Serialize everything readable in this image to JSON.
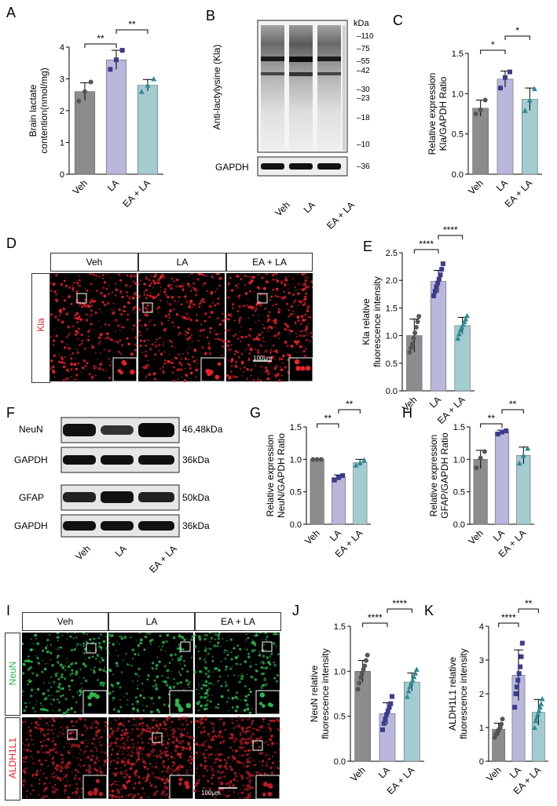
{
  "panel_letters": {
    "A": "A",
    "B": "B",
    "C": "C",
    "D": "D",
    "E": "E",
    "F": "F",
    "G": "G",
    "H": "H",
    "I": "I",
    "J": "J",
    "K": "K"
  },
  "groups": [
    "Veh",
    "LA",
    "EA + LA"
  ],
  "colors": {
    "veh": "#8c8c8c",
    "la": "#b9b7dc",
    "ea": "#a3ccd0",
    "la_dot": "#3b3c8c",
    "ea_dot": "#2f8a95",
    "veh_dot": "#555555",
    "red": "#e8212b",
    "green": "#2db54b"
  },
  "blot_b": {
    "kda": "kDa",
    "markers": [
      "110",
      "75",
      "55",
      "42",
      "30",
      "23",
      "18",
      "10"
    ],
    "gapdh_marker": "36",
    "ylabel": "Anti-lactylysine (Kla)",
    "gapdh": "GAPDH"
  },
  "blot_f": {
    "rows": [
      {
        "name": "NeuN",
        "kda": "46,48kDa"
      },
      {
        "name": "GAPDH",
        "kda": "36kDa"
      },
      {
        "name": "GFAP",
        "kda": "50kDa"
      },
      {
        "name": "GAPDH",
        "kda": "36kDa"
      }
    ]
  },
  "micro_d": {
    "stain": "Kla",
    "scale": "100μm"
  },
  "micro_i": {
    "stains": [
      "NeuN",
      "ALDH1L1"
    ],
    "scale": "100μm"
  },
  "chart_data": [
    {
      "panel": "A",
      "type": "bar",
      "categories": [
        "Veh",
        "LA",
        "EA + LA"
      ],
      "values": [
        2.6,
        3.6,
        2.8
      ],
      "errors": [
        0.28,
        0.3,
        0.18
      ],
      "points": [
        [
          2.3,
          2.6,
          2.9
        ],
        [
          3.3,
          3.6,
          3.9
        ],
        [
          2.6,
          2.8,
          3.0
        ]
      ],
      "ylabel": "Brain lactate contention(nmol/mg)",
      "ylim": [
        0,
        4
      ],
      "yticks": [
        0,
        1,
        2,
        3,
        4
      ],
      "sig": [
        {
          "from": 0,
          "to": 1,
          "label": "**"
        },
        {
          "from": 1,
          "to": 2,
          "label": "**"
        }
      ]
    },
    {
      "panel": "C",
      "type": "bar",
      "categories": [
        "Veh",
        "LA",
        "EA + LA"
      ],
      "values": [
        0.82,
        1.18,
        0.93
      ],
      "errors": [
        0.1,
        0.1,
        0.14
      ],
      "points": [
        [
          0.75,
          0.8,
          0.92
        ],
        [
          1.07,
          1.2,
          1.27
        ],
        [
          0.79,
          0.92,
          1.06
        ]
      ],
      "ylabel": "Relative expression Kla/GAPDH Ratio",
      "ylim": [
        0,
        1.5
      ],
      "yticks": [
        0.0,
        0.5,
        1.0,
        1.5
      ],
      "sig": [
        {
          "from": 0,
          "to": 1,
          "label": "*"
        },
        {
          "from": 1,
          "to": 2,
          "label": "*"
        }
      ]
    },
    {
      "panel": "E",
      "type": "bar",
      "categories": [
        "Veh",
        "LA",
        "EA + LA"
      ],
      "values": [
        1.0,
        1.98,
        1.18
      ],
      "errors": [
        0.3,
        0.2,
        0.15
      ],
      "points": [
        [
          0.7,
          0.78,
          0.85,
          0.95,
          1.05,
          1.15,
          1.25,
          1.35
        ],
        [
          1.72,
          1.8,
          1.88,
          1.95,
          2.02,
          2.1,
          2.2,
          2.3
        ],
        [
          0.95,
          1.03,
          1.1,
          1.15,
          1.2,
          1.25,
          1.3,
          1.36
        ]
      ],
      "ylabel": "Kla relative fluorescence intensity",
      "ylim": [
        0,
        2.5
      ],
      "yticks": [
        0.0,
        0.5,
        1.0,
        1.5,
        2.0,
        2.5
      ],
      "sig": [
        {
          "from": 0,
          "to": 1,
          "label": "****"
        },
        {
          "from": 1,
          "to": 2,
          "label": "****"
        }
      ]
    },
    {
      "panel": "G",
      "type": "bar",
      "categories": [
        "Veh",
        "LA",
        "EA + LA"
      ],
      "values": [
        1.0,
        0.72,
        0.95
      ],
      "errors": [
        0.01,
        0.04,
        0.05
      ],
      "points": [
        [
          1.0,
          1.0,
          1.0
        ],
        [
          0.68,
          0.72,
          0.75
        ],
        [
          0.91,
          0.95,
          0.99
        ]
      ],
      "ylabel": "Relative expression NeuN/GAPDH Ratio",
      "ylim": [
        0,
        1.5
      ],
      "yticks": [
        0.0,
        0.5,
        1.0,
        1.5
      ],
      "sig": [
        {
          "from": 0,
          "to": 1,
          "label": "**"
        },
        {
          "from": 1,
          "to": 2,
          "label": "**"
        }
      ]
    },
    {
      "panel": "H",
      "type": "bar",
      "categories": [
        "Veh",
        "LA",
        "EA + LA"
      ],
      "values": [
        1.0,
        1.42,
        1.06
      ],
      "errors": [
        0.14,
        0.03,
        0.13
      ],
      "points": [
        [
          0.87,
          1.02,
          1.12
        ],
        [
          1.39,
          1.42,
          1.44
        ],
        [
          0.94,
          1.06,
          1.17
        ]
      ],
      "ylabel": "Relative expression GFAP/GAPDH Ratio",
      "ylim": [
        0,
        1.5
      ],
      "yticks": [
        0.0,
        0.5,
        1.0,
        1.5
      ],
      "sig": [
        {
          "from": 0,
          "to": 1,
          "label": "**"
        },
        {
          "from": 1,
          "to": 2,
          "label": "**"
        }
      ]
    },
    {
      "panel": "J",
      "type": "bar",
      "categories": [
        "Veh",
        "LA",
        "EA + LA"
      ],
      "values": [
        1.0,
        0.53,
        0.88
      ],
      "errors": [
        0.12,
        0.12,
        0.1
      ],
      "points": [
        [
          0.8,
          0.87,
          0.93,
          0.98,
          1.02,
          1.06,
          1.12,
          1.18
        ],
        [
          0.35,
          0.42,
          0.47,
          0.52,
          0.56,
          0.6,
          0.64,
          0.72
        ],
        [
          0.72,
          0.78,
          0.83,
          0.87,
          0.9,
          0.94,
          0.98,
          1.02
        ]
      ],
      "ylabel": "NeuN relative fluorescence intensity",
      "ylim": [
        0,
        1.5
      ],
      "yticks": [
        0.0,
        0.5,
        1.0,
        1.5
      ],
      "sig": [
        {
          "from": 0,
          "to": 1,
          "label": "****"
        },
        {
          "from": 1,
          "to": 2,
          "label": "****"
        }
      ]
    },
    {
      "panel": "K",
      "type": "bar",
      "categories": [
        "Veh",
        "LA",
        "EA + LA"
      ],
      "values": [
        0.95,
        2.55,
        1.45
      ],
      "errors": [
        0.18,
        0.75,
        0.38
      ],
      "points": [
        [
          0.7,
          0.8,
          0.85,
          0.9,
          0.95,
          1.0,
          1.1,
          1.25
        ],
        [
          1.6,
          2.0,
          2.2,
          2.4,
          2.6,
          2.8,
          3.1,
          3.5
        ],
        [
          1.0,
          1.2,
          1.3,
          1.4,
          1.5,
          1.6,
          1.7,
          1.85
        ]
      ],
      "ylabel": "ALDH1L1 relative fluorescence intensity",
      "ylim": [
        0,
        4
      ],
      "yticks": [
        0,
        1,
        2,
        3,
        4
      ],
      "sig": [
        {
          "from": 0,
          "to": 1,
          "label": "****"
        },
        {
          "from": 1,
          "to": 2,
          "label": "**"
        }
      ]
    }
  ]
}
